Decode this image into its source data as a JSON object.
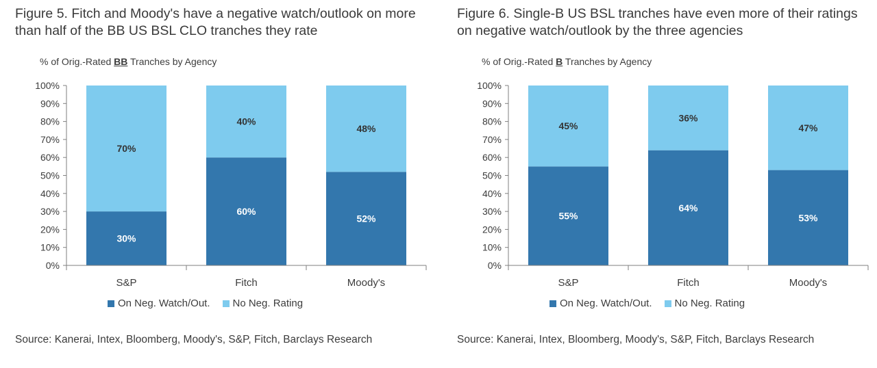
{
  "colors": {
    "neg": "#3377ad",
    "no_neg": "#7ecbee",
    "axis": "#7f7f7f"
  },
  "legend": {
    "neg_label": "On Neg. Watch/Out.",
    "no_neg_label": "No Neg. Rating"
  },
  "source_text": "Source: Kanerai, Intex, Bloomberg, Moody's, S&P, Fitch, Barclays Research",
  "charts": [
    {
      "title": "Figure 5. Fitch and Moody's have a negative watch/outlook on more than half of the BB US BSL CLO tranches they rate",
      "y_caption_pre": "% of  Orig.-Rated ",
      "y_caption_rating": "BB",
      "y_caption_post": " Tranches by Agency"
    },
    {
      "title": "Figure 6. Single-B US BSL tranches have even more of their ratings on negative watch/outlook by the three agencies",
      "y_caption_pre": "% of  Orig.-Rated ",
      "y_caption_rating": "B",
      "y_caption_post": " Tranches by Agency"
    }
  ],
  "chart_data": [
    {
      "type": "bar",
      "stacked": true,
      "categories": [
        "S&P",
        "Fitch",
        "Moody's"
      ],
      "series": [
        {
          "name": "On Neg. Watch/Out.",
          "values": [
            30,
            60,
            52
          ]
        },
        {
          "name": "No Neg. Rating",
          "values": [
            70,
            40,
            48
          ]
        }
      ],
      "ylim": [
        0,
        100
      ],
      "yticks": [
        "0%",
        "10%",
        "20%",
        "30%",
        "40%",
        "50%",
        "60%",
        "70%",
        "80%",
        "90%",
        "100%"
      ],
      "legend_position": "bottom"
    },
    {
      "type": "bar",
      "stacked": true,
      "categories": [
        "S&P",
        "Fitch",
        "Moody's"
      ],
      "series": [
        {
          "name": "On Neg. Watch/Out.",
          "values": [
            55,
            64,
            53
          ]
        },
        {
          "name": "No Neg. Rating",
          "values": [
            45,
            36,
            47
          ]
        }
      ],
      "ylim": [
        0,
        100
      ],
      "yticks": [
        "0%",
        "10%",
        "20%",
        "30%",
        "40%",
        "50%",
        "60%",
        "70%",
        "80%",
        "90%",
        "100%"
      ],
      "legend_position": "bottom"
    }
  ]
}
